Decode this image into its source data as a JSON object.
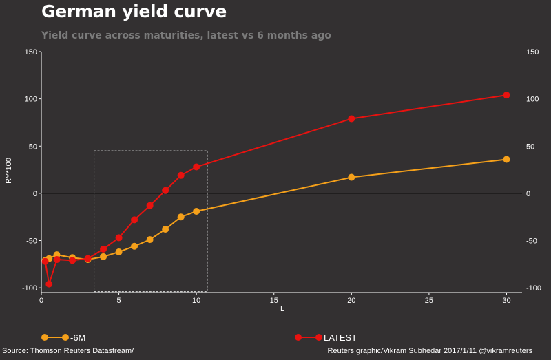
{
  "title": "German yield curve",
  "subtitle": "Yield curve across maturities, latest vs 6 months ago",
  "footer": {
    "source": "Source: Thomson Reuters Datastream/",
    "credit": "Reuters graphic/Vikram Subhedar 2017/1/11  @vikramreuters"
  },
  "colors": {
    "background": "#333031",
    "six_month": "#f5a01a",
    "latest": "#e8120f",
    "axis": "#ffffff",
    "highlight_box": "#dddddd"
  },
  "chart_data": {
    "type": "line",
    "title": "German yield curve",
    "subtitle": "Yield curve across maturities, latest vs 6 months ago",
    "xlabel": "L",
    "ylabel": "RY*100",
    "xlim": [
      0,
      31
    ],
    "ylim": [
      -105,
      150
    ],
    "x_ticks": [
      0,
      5,
      10,
      15,
      20,
      25,
      30
    ],
    "y_ticks": [
      -100,
      -50,
      0,
      50,
      100,
      150
    ],
    "y_tick_labels": [
      "-100",
      "-50",
      "0",
      "50",
      "100",
      "150"
    ],
    "secondary_y_axis": true,
    "zero_line": true,
    "grid": false,
    "legend_position": "bottom",
    "highlight_box": {
      "x": [
        3.4,
        10.7
      ],
      "y": [
        -104,
        45
      ]
    },
    "series": [
      {
        "name": "-6M",
        "color": "#f5a01a",
        "x": [
          0.25,
          0.5,
          1,
          2,
          3,
          4,
          5,
          6,
          7,
          8,
          9,
          10,
          20,
          30
        ],
        "y": [
          -71,
          -69,
          -65,
          -68,
          -70,
          -67,
          -62,
          -56,
          -49,
          -38,
          -25,
          -19,
          17,
          36
        ]
      },
      {
        "name": "LATEST",
        "color": "#e8120f",
        "x": [
          0.25,
          0.5,
          1,
          2,
          3,
          4,
          5,
          6,
          7,
          8,
          9,
          10,
          20,
          30
        ],
        "y": [
          -72,
          -96,
          -70,
          -71,
          -69,
          -59,
          -47,
          -28,
          -13,
          3,
          19,
          28,
          79,
          104
        ]
      }
    ]
  }
}
